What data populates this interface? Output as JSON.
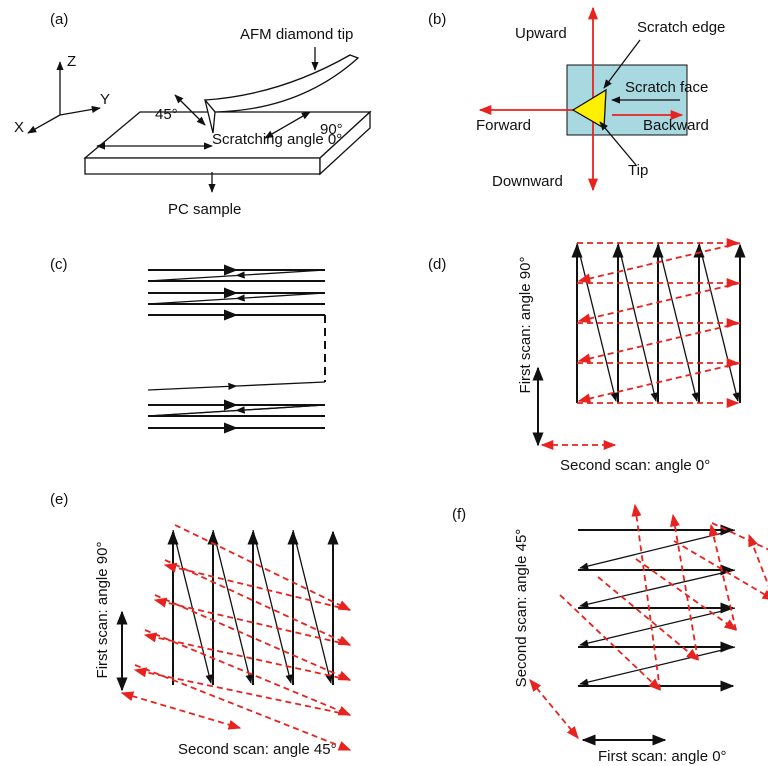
{
  "panels": [
    {
      "label": "(a)",
      "texts": [
        "AFM diamond tip",
        "Z",
        "Y",
        "X",
        "45°",
        "90°",
        "Scratching angle 0°",
        "PC sample"
      ]
    },
    {
      "label": "(b)",
      "texts": [
        "Upward",
        "Scratch edge",
        "Scratch face",
        "Forward",
        "Backward",
        "Tip",
        "Downward"
      ]
    },
    {
      "label": "(c)",
      "texts": []
    },
    {
      "label": "(d)",
      "texts": [
        "First scan: angle 90°",
        "Second scan: angle 0°"
      ]
    },
    {
      "label": "(e)",
      "texts": [
        "First scan: angle 90°",
        "Second scan: angle 45°"
      ]
    },
    {
      "label": "(f)",
      "texts": [
        "Second scan: angle 45°",
        "First scan: angle 0°"
      ]
    }
  ]
}
